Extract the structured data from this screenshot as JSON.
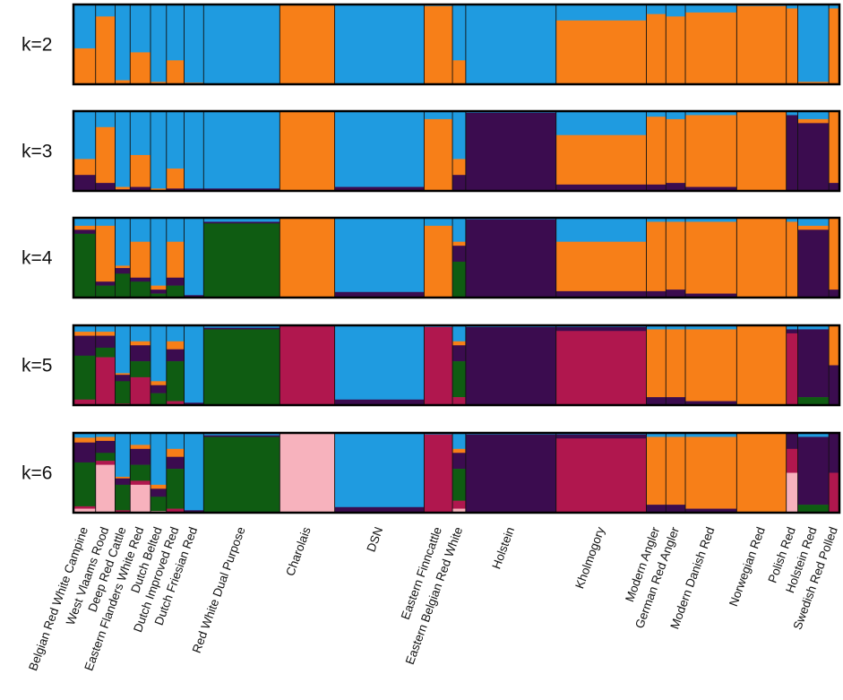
{
  "chart_data": {
    "type": "admixture-bar",
    "title": "",
    "xlabel": "",
    "ylabel": "",
    "ylim": [
      0,
      1
    ],
    "panels": [
      {
        "label": "k=2",
        "k": 2
      },
      {
        "label": "k=3",
        "k": 3
      },
      {
        "label": "k=4",
        "k": 4
      },
      {
        "label": "k=5",
        "k": 5
      },
      {
        "label": "k=6",
        "k": 6
      }
    ],
    "cluster_colors": [
      "#1f9be0",
      "#f77f18",
      "#3b0c4f",
      "#0f5c12",
      "#b0174e",
      "#f7b2bd"
    ],
    "populations": [
      {
        "name": "Belgian Red White Campine",
        "weight": 25,
        "props": [
          [
            0.55,
            0.45
          ],
          [
            0.6,
            0.2,
            0.2
          ],
          [
            0.1,
            0.05,
            0.05,
            0.8
          ],
          [
            0.08,
            0.05,
            0.25,
            0.55,
            0.07
          ],
          [
            0.06,
            0.06,
            0.25,
            0.55,
            0.03,
            0.05
          ]
        ]
      },
      {
        "name": "West Vlaams Rood",
        "weight": 22,
        "props": [
          [
            0.15,
            0.85
          ],
          [
            0.2,
            0.7,
            0.1
          ],
          [
            0.1,
            0.7,
            0.05,
            0.15
          ],
          [
            0.08,
            0.05,
            0.15,
            0.12,
            0.6
          ],
          [
            0.05,
            0.05,
            0.15,
            0.1,
            0.05,
            0.6
          ]
        ]
      },
      {
        "name": "Deep Red Cattle",
        "weight": 17,
        "props": [
          [
            0.95,
            0.05
          ],
          [
            0.95,
            0.03,
            0.02
          ],
          [
            0.6,
            0.03,
            0.07,
            0.3
          ],
          [
            0.6,
            0.02,
            0.08,
            0.28,
            0.02
          ],
          [
            0.55,
            0.02,
            0.08,
            0.32,
            0.02,
            0.01
          ]
        ]
      },
      {
        "name": "Eastern Flanders White Red",
        "weight": 23,
        "props": [
          [
            0.6,
            0.4
          ],
          [
            0.55,
            0.4,
            0.05
          ],
          [
            0.3,
            0.45,
            0.05,
            0.2
          ],
          [
            0.2,
            0.05,
            0.2,
            0.2,
            0.35
          ],
          [
            0.15,
            0.05,
            0.2,
            0.2,
            0.05,
            0.35
          ]
        ]
      },
      {
        "name": "Dutch Belted",
        "weight": 18,
        "props": [
          [
            0.97,
            0.03
          ],
          [
            0.97,
            0.02,
            0.01
          ],
          [
            0.85,
            0.05,
            0.05,
            0.05
          ],
          [
            0.7,
            0.05,
            0.1,
            0.15,
            0.0
          ],
          [
            0.65,
            0.05,
            0.1,
            0.18,
            0.0,
            0.02
          ]
        ]
      },
      {
        "name": "Dutch Improved Red",
        "weight": 20,
        "props": [
          [
            0.7,
            0.3
          ],
          [
            0.72,
            0.25,
            0.03
          ],
          [
            0.3,
            0.45,
            0.1,
            0.15
          ],
          [
            0.2,
            0.1,
            0.15,
            0.5,
            0.05
          ],
          [
            0.2,
            0.1,
            0.15,
            0.5,
            0.05,
            0.0
          ]
        ]
      },
      {
        "name": "Dutch Friesian Red",
        "weight": 22,
        "props": [
          [
            0.98,
            0.02
          ],
          [
            0.97,
            0.0,
            0.03
          ],
          [
            0.97,
            0.0,
            0.03,
            0.0
          ],
          [
            0.97,
            0.0,
            0.03,
            0.0,
            0.0
          ],
          [
            0.97,
            0.0,
            0.03,
            0.0,
            0.0,
            0.0
          ]
        ]
      },
      {
        "name": "Red White Dual Purpose",
        "weight": 86,
        "props": [
          [
            1.0,
            0.0
          ],
          [
            0.97,
            0.0,
            0.03
          ],
          [
            0.05,
            0.0,
            0.02,
            0.93
          ],
          [
            0.03,
            0.0,
            0.02,
            0.95,
            0.0
          ],
          [
            0.03,
            0.0,
            0.02,
            0.95,
            0.0,
            0.0
          ]
        ]
      },
      {
        "name": "Charolais",
        "weight": 62,
        "props": [
          [
            0.0,
            1.0
          ],
          [
            0.0,
            1.0,
            0.0
          ],
          [
            0.0,
            1.0,
            0.0,
            0.0
          ],
          [
            0.0,
            0.0,
            0.0,
            0.0,
            1.0
          ],
          [
            0.0,
            0.0,
            0.0,
            0.0,
            0.0,
            1.0
          ]
        ]
      },
      {
        "name": "DSN",
        "weight": 101,
        "props": [
          [
            1.0,
            0.0
          ],
          [
            0.95,
            0.0,
            0.05
          ],
          [
            0.93,
            0.0,
            0.07,
            0.0
          ],
          [
            0.93,
            0.0,
            0.07,
            0.0,
            0.0
          ],
          [
            0.93,
            0.0,
            0.07,
            0.0,
            0.0,
            0.0
          ]
        ]
      },
      {
        "name": "Eastern Finncattle",
        "weight": 32,
        "props": [
          [
            0.02,
            0.98
          ],
          [
            0.1,
            0.9,
            0.0
          ],
          [
            0.1,
            0.9,
            0.0,
            0.0
          ],
          [
            0.02,
            0.0,
            0.0,
            0.0,
            0.98
          ],
          [
            0.02,
            0.0,
            0.0,
            0.0,
            0.98,
            0.0
          ]
        ]
      },
      {
        "name": "Eastern Belgian Red White",
        "weight": 15,
        "props": [
          [
            0.7,
            0.3
          ],
          [
            0.6,
            0.2,
            0.2
          ],
          [
            0.3,
            0.05,
            0.2,
            0.45
          ],
          [
            0.2,
            0.05,
            0.2,
            0.45,
            0.1
          ],
          [
            0.2,
            0.05,
            0.2,
            0.4,
            0.1,
            0.05
          ]
        ]
      },
      {
        "name": "Holstein",
        "weight": 102,
        "props": [
          [
            1.0,
            0.0
          ],
          [
            0.02,
            0.0,
            0.98
          ],
          [
            0.02,
            0.0,
            0.98,
            0.0
          ],
          [
            0.02,
            0.0,
            0.98,
            0.0,
            0.0
          ],
          [
            0.02,
            0.0,
            0.98,
            0.0,
            0.0,
            0.0
          ]
        ]
      },
      {
        "name": "Kholmogory",
        "weight": 102,
        "props": [
          [
            0.2,
            0.8
          ],
          [
            0.3,
            0.62,
            0.08
          ],
          [
            0.3,
            0.62,
            0.08,
            0.0
          ],
          [
            0.02,
            0.0,
            0.05,
            0.0,
            0.93
          ],
          [
            0.02,
            0.0,
            0.05,
            0.0,
            0.93,
            0.0
          ]
        ]
      },
      {
        "name": "Modern Angler",
        "weight": 22,
        "props": [
          [
            0.12,
            0.88
          ],
          [
            0.07,
            0.85,
            0.08
          ],
          [
            0.05,
            0.87,
            0.08,
            0.0
          ],
          [
            0.05,
            0.85,
            0.1,
            0.0,
            0.0
          ],
          [
            0.05,
            0.85,
            0.1,
            0.0,
            0.0,
            0.0
          ]
        ]
      },
      {
        "name": "German Red Angler",
        "weight": 22,
        "props": [
          [
            0.15,
            0.85
          ],
          [
            0.1,
            0.8,
            0.1
          ],
          [
            0.05,
            0.85,
            0.1,
            0.0
          ],
          [
            0.05,
            0.85,
            0.1,
            0.0,
            0.0
          ],
          [
            0.05,
            0.85,
            0.1,
            0.0,
            0.0,
            0.0
          ]
        ]
      },
      {
        "name": "Modern Danish Red",
        "weight": 58,
        "props": [
          [
            0.1,
            0.9
          ],
          [
            0.05,
            0.9,
            0.05
          ],
          [
            0.05,
            0.9,
            0.05,
            0.0
          ],
          [
            0.05,
            0.9,
            0.05,
            0.0,
            0.0
          ],
          [
            0.05,
            0.9,
            0.05,
            0.0,
            0.0,
            0.0
          ]
        ]
      },
      {
        "name": "Norwegian Red",
        "weight": 56,
        "props": [
          [
            0.02,
            0.98
          ],
          [
            0.0,
            1.0,
            0.0
          ],
          [
            0.0,
            1.0,
            0.0,
            0.0
          ],
          [
            0.0,
            1.0,
            0.0,
            0.0,
            0.0
          ],
          [
            0.0,
            1.0,
            0.0,
            0.0,
            0.0,
            0.0
          ]
        ]
      },
      {
        "name": "Polish Red",
        "weight": 13,
        "props": [
          [
            0.05,
            0.95
          ],
          [
            0.05,
            0.0,
            0.95
          ],
          [
            0.05,
            0.95,
            0.0,
            0.0
          ],
          [
            0.05,
            0.0,
            0.05,
            0.0,
            0.9
          ],
          [
            0.0,
            0.0,
            0.2,
            0.0,
            0.3,
            0.5
          ]
        ]
      },
      {
        "name": "Holstein Red",
        "weight": 35,
        "props": [
          [
            0.97,
            0.03
          ],
          [
            0.1,
            0.05,
            0.85
          ],
          [
            0.1,
            0.05,
            0.85,
            0.0
          ],
          [
            0.05,
            0.0,
            0.85,
            0.1,
            0.0
          ],
          [
            0.05,
            0.0,
            0.85,
            0.1,
            0.0,
            0.0
          ]
        ]
      },
      {
        "name": "Swedish Red Polled",
        "weight": 12,
        "props": [
          [
            0.05,
            0.95
          ],
          [
            0.0,
            0.9,
            0.1
          ],
          [
            0.0,
            0.9,
            0.1,
            0.0
          ],
          [
            0.0,
            0.5,
            0.5,
            0.0,
            0.0
          ],
          [
            0.0,
            0.0,
            0.5,
            0.0,
            0.5,
            0.0
          ]
        ]
      }
    ]
  }
}
